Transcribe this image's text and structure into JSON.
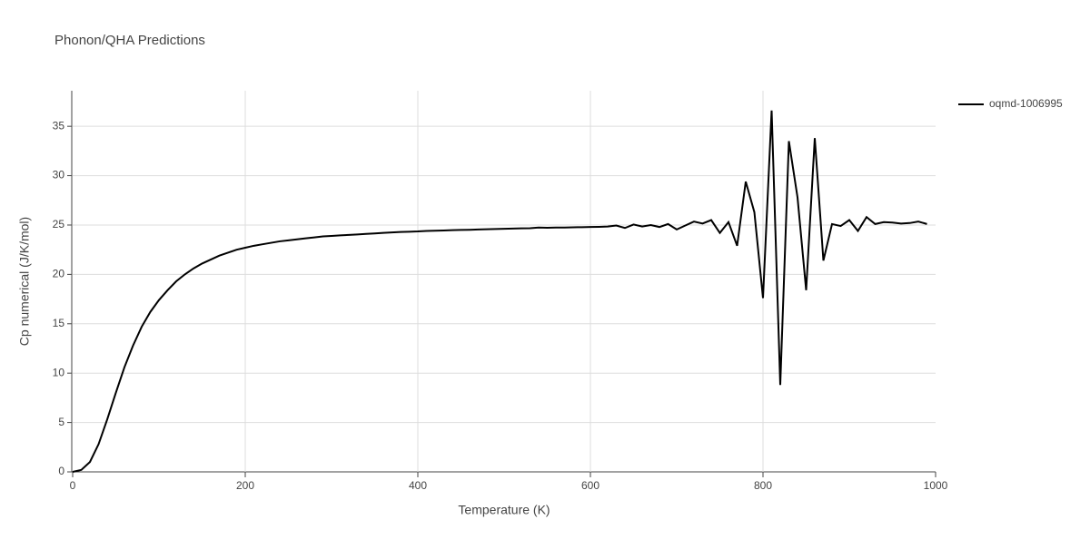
{
  "chart_data": {
    "type": "line",
    "title": "Phonon/QHA Predictions",
    "x_label": "Temperature (K)",
    "y_label": "Cp numerical (J/K/mol)",
    "xlim": [
      0,
      1000
    ],
    "xticks": [
      0,
      200,
      400,
      600,
      800,
      1000
    ],
    "ylim": [
      0,
      38.6
    ],
    "yticks": [
      0,
      5,
      10,
      15,
      20,
      25,
      30,
      35
    ],
    "grid": true,
    "series": [
      {
        "name": "oqmd-1006995",
        "color": "#000000",
        "x": [
          0,
          10,
          20,
          30,
          40,
          50,
          60,
          70,
          80,
          90,
          100,
          110,
          120,
          130,
          140,
          150,
          160,
          170,
          180,
          190,
          200,
          210,
          220,
          230,
          240,
          250,
          260,
          270,
          280,
          290,
          300,
          310,
          320,
          330,
          340,
          350,
          360,
          370,
          380,
          390,
          400,
          410,
          420,
          430,
          440,
          450,
          460,
          470,
          480,
          490,
          500,
          510,
          520,
          530,
          540,
          550,
          560,
          570,
          580,
          590,
          600,
          610,
          620,
          630,
          640,
          650,
          660,
          670,
          680,
          690,
          700,
          710,
          720,
          730,
          740,
          750,
          760,
          770,
          780,
          790,
          800,
          810,
          820,
          830,
          840,
          850,
          860,
          870,
          880,
          890,
          900,
          910,
          920,
          930,
          940,
          950,
          960,
          970,
          980,
          990
        ],
        "values": [
          0,
          0.2,
          1.0,
          2.8,
          5.3,
          8.0,
          10.6,
          12.8,
          14.7,
          16.2,
          17.4,
          18.4,
          19.3,
          20.0,
          20.6,
          21.1,
          21.5,
          21.9,
          22.2,
          22.5,
          22.7,
          22.9,
          23.05,
          23.2,
          23.35,
          23.45,
          23.55,
          23.65,
          23.75,
          23.85,
          23.9,
          23.95,
          24.0,
          24.05,
          24.1,
          24.15,
          24.2,
          24.25,
          24.3,
          24.32,
          24.35,
          24.4,
          24.42,
          24.45,
          24.48,
          24.5,
          24.52,
          24.55,
          24.57,
          24.6,
          24.62,
          24.64,
          24.66,
          24.68,
          24.75,
          24.72,
          24.74,
          24.75,
          24.77,
          24.78,
          24.8,
          24.82,
          24.85,
          24.95,
          24.7,
          25.05,
          24.85,
          25.0,
          24.8,
          25.1,
          24.55,
          24.95,
          25.35,
          25.15,
          25.5,
          24.2,
          25.3,
          22.9,
          29.4,
          26.3,
          17.6,
          36.6,
          8.8,
          33.5,
          27.8,
          18.4,
          33.8,
          21.4,
          25.1,
          24.9,
          25.5,
          24.4,
          25.8,
          25.1,
          25.3,
          25.25,
          25.15,
          25.2,
          25.35,
          25.1
        ]
      }
    ]
  }
}
